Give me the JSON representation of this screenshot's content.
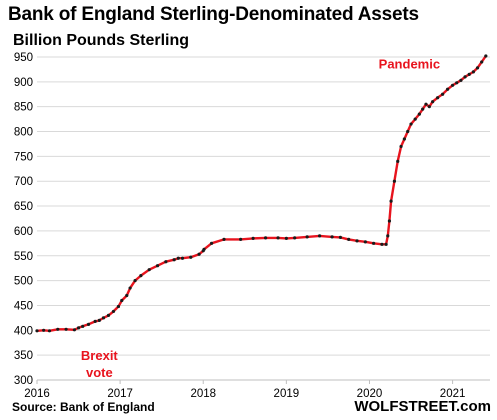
{
  "chart_data": {
    "type": "line",
    "title": "Bank of England Sterling-Denominated  Assets",
    "subtitle": "Billion Pounds Sterling",
    "source": "Source: Bank of England",
    "brand": "WOLFSTREET.com",
    "ylim": [
      300,
      960
    ],
    "yticks": [
      300,
      350,
      400,
      450,
      500,
      550,
      600,
      650,
      700,
      750,
      800,
      850,
      900,
      950
    ],
    "xlim": [
      2016.0,
      2021.45
    ],
    "xticks": [
      2016,
      2017,
      2018,
      2019,
      2020,
      2021
    ],
    "grid": true,
    "line_color": "#e8141e",
    "marker_color": "#1a1a1a",
    "series": [
      {
        "x": [
          2016.0,
          2016.08,
          2016.15,
          2016.25,
          2016.35,
          2016.45,
          2016.5,
          2016.55,
          2016.62,
          2016.7,
          2016.75,
          2016.8,
          2016.86,
          2016.92,
          2016.98,
          2017.02,
          2017.08,
          2017.12,
          2017.18,
          2017.25,
          2017.35,
          2017.45,
          2017.55,
          2017.65,
          2017.7,
          2017.75,
          2017.85,
          2017.95,
          2018.0,
          2018.01,
          2018.1,
          2018.25,
          2018.45,
          2018.6,
          2018.75,
          2018.9,
          2019.0,
          2019.1,
          2019.25,
          2019.4,
          2019.55,
          2019.65,
          2019.75,
          2019.85,
          2019.95,
          2020.05,
          2020.15,
          2020.2,
          2020.22,
          2020.24,
          2020.26,
          2020.3,
          2020.34,
          2020.38,
          2020.42,
          2020.46,
          2020.5,
          2020.55,
          2020.6,
          2020.64,
          2020.68,
          2020.72,
          2020.76,
          2020.82,
          2020.88,
          2020.94,
          2021.0,
          2021.05,
          2021.1,
          2021.15,
          2021.2,
          2021.25,
          2021.3,
          2021.35,
          2021.4
        ],
        "y": [
          399,
          400,
          399,
          402,
          402,
          401,
          405,
          408,
          412,
          418,
          420,
          425,
          430,
          438,
          448,
          460,
          470,
          485,
          500,
          510,
          522,
          530,
          538,
          542,
          545,
          545,
          547,
          553,
          560,
          563,
          575,
          583,
          583,
          585,
          586,
          586,
          585,
          586,
          588,
          590,
          588,
          587,
          583,
          580,
          578,
          575,
          573,
          573,
          590,
          620,
          660,
          700,
          740,
          770,
          785,
          800,
          815,
          825,
          835,
          845,
          855,
          850,
          860,
          868,
          875,
          885,
          893,
          898,
          903,
          910,
          915,
          920,
          928,
          940,
          952
        ]
      }
    ],
    "annotations": [
      {
        "lines": [
          "Brexit",
          "vote"
        ],
        "x": 2016.75,
        "y": 340
      },
      {
        "lines": [
          "Pandemic"
        ],
        "x": 2020.48,
        "y": 927
      }
    ]
  }
}
